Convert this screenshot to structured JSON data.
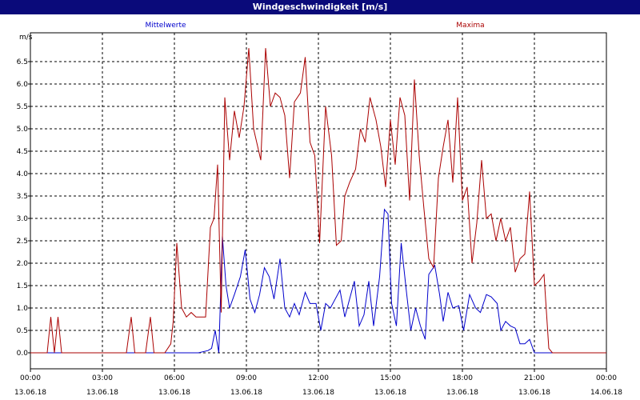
{
  "window": {
    "title": "Windgeschwindigkeit [m/s]"
  },
  "colors": {
    "title_bar": "#0a0a7a",
    "mean_series": "#0000cc",
    "max_series": "#aa0000",
    "grid": "#000000"
  },
  "chart_data": {
    "type": "line",
    "title": "Windgeschwindigkeit [m/s]",
    "ylabel": "m/s",
    "ylim": [
      0,
      7
    ],
    "yticks": [
      "0.0",
      "0.5",
      "1.0",
      "1.5",
      "2.0",
      "2.5",
      "3.0",
      "3.5",
      "4.0",
      "4.5",
      "5.0",
      "5.5",
      "6.0",
      "6.5"
    ],
    "xlim": [
      0,
      24
    ],
    "xticks": [
      {
        "time": "00:00",
        "date": "13.06.18"
      },
      {
        "time": "03:00",
        "date": "13.06.18"
      },
      {
        "time": "06:00",
        "date": "13.06.18"
      },
      {
        "time": "09:00",
        "date": "13.06.18"
      },
      {
        "time": "12:00",
        "date": "13.06.18"
      },
      {
        "time": "15:00",
        "date": "13.06.18"
      },
      {
        "time": "18:00",
        "date": "13.06.18"
      },
      {
        "time": "21:00",
        "date": "13.06.18"
      },
      {
        "time": "00:00",
        "date": "14.06.18"
      }
    ],
    "grid": true,
    "series": [
      {
        "name": "Mittelwerte",
        "color": "#0000cc",
        "points": [
          [
            0,
            0
          ],
          [
            7.0,
            0
          ],
          [
            7.4,
            0.05
          ],
          [
            7.55,
            0.1
          ],
          [
            7.7,
            0.5
          ],
          [
            7.85,
            0
          ],
          [
            8.0,
            2.6
          ],
          [
            8.15,
            1.5
          ],
          [
            8.3,
            1.0
          ],
          [
            8.5,
            1.3
          ],
          [
            8.75,
            1.7
          ],
          [
            8.95,
            2.3
          ],
          [
            9.15,
            1.2
          ],
          [
            9.35,
            0.9
          ],
          [
            9.55,
            1.3
          ],
          [
            9.75,
            1.9
          ],
          [
            9.95,
            1.7
          ],
          [
            10.15,
            1.2
          ],
          [
            10.4,
            2.1
          ],
          [
            10.6,
            1.0
          ],
          [
            10.8,
            0.8
          ],
          [
            11.0,
            1.1
          ],
          [
            11.2,
            0.85
          ],
          [
            11.45,
            1.35
          ],
          [
            11.65,
            1.1
          ],
          [
            11.9,
            1.1
          ],
          [
            12.1,
            0.5
          ],
          [
            12.3,
            1.1
          ],
          [
            12.5,
            1.0
          ],
          [
            12.7,
            1.2
          ],
          [
            12.9,
            1.4
          ],
          [
            13.1,
            0.8
          ],
          [
            13.3,
            1.2
          ],
          [
            13.5,
            1.6
          ],
          [
            13.7,
            0.6
          ],
          [
            13.9,
            0.85
          ],
          [
            14.1,
            1.6
          ],
          [
            14.3,
            0.6
          ],
          [
            14.55,
            1.7
          ],
          [
            14.75,
            3.2
          ],
          [
            14.9,
            3.1
          ],
          [
            15.05,
            1.1
          ],
          [
            15.25,
            0.6
          ],
          [
            15.45,
            2.45
          ],
          [
            15.65,
            1.45
          ],
          [
            15.85,
            0.5
          ],
          [
            16.05,
            1.0
          ],
          [
            16.25,
            0.6
          ],
          [
            16.45,
            0.3
          ],
          [
            16.6,
            1.75
          ],
          [
            16.85,
            1.95
          ],
          [
            17.05,
            1.3
          ],
          [
            17.2,
            0.7
          ],
          [
            17.4,
            1.35
          ],
          [
            17.6,
            1.0
          ],
          [
            17.85,
            1.05
          ],
          [
            18.05,
            0.5
          ],
          [
            18.3,
            1.3
          ],
          [
            18.55,
            1.0
          ],
          [
            18.75,
            0.9
          ],
          [
            19.0,
            1.3
          ],
          [
            19.2,
            1.25
          ],
          [
            19.45,
            1.1
          ],
          [
            19.6,
            0.5
          ],
          [
            19.8,
            0.7
          ],
          [
            20.0,
            0.6
          ],
          [
            20.2,
            0.55
          ],
          [
            20.4,
            0.2
          ],
          [
            20.6,
            0.2
          ],
          [
            20.8,
            0.3
          ],
          [
            21.0,
            0.0
          ],
          [
            24,
            0
          ]
        ]
      },
      {
        "name": "Maxima",
        "color": "#aa0000",
        "points": [
          [
            0,
            0
          ],
          [
            0.7,
            0
          ],
          [
            0.85,
            0.8
          ],
          [
            1.0,
            0
          ],
          [
            1.15,
            0.8
          ],
          [
            1.3,
            0
          ],
          [
            4.0,
            0
          ],
          [
            4.2,
            0.8
          ],
          [
            4.35,
            0
          ],
          [
            4.8,
            0
          ],
          [
            5.0,
            0.8
          ],
          [
            5.15,
            0
          ],
          [
            5.6,
            0
          ],
          [
            5.85,
            0.2
          ],
          [
            5.95,
            0.7
          ],
          [
            6.1,
            2.45
          ],
          [
            6.3,
            1.0
          ],
          [
            6.5,
            0.8
          ],
          [
            6.7,
            0.9
          ],
          [
            6.9,
            0.8
          ],
          [
            7.3,
            0.8
          ],
          [
            7.5,
            2.8
          ],
          [
            7.65,
            3.0
          ],
          [
            7.8,
            4.2
          ],
          [
            7.95,
            0.9
          ],
          [
            8.1,
            5.7
          ],
          [
            8.3,
            4.3
          ],
          [
            8.5,
            5.4
          ],
          [
            8.7,
            4.8
          ],
          [
            8.9,
            5.5
          ],
          [
            9.1,
            6.8
          ],
          [
            9.3,
            5.0
          ],
          [
            9.6,
            4.3
          ],
          [
            9.8,
            6.8
          ],
          [
            10.0,
            5.5
          ],
          [
            10.2,
            5.8
          ],
          [
            10.4,
            5.7
          ],
          [
            10.6,
            5.3
          ],
          [
            10.8,
            3.9
          ],
          [
            11.0,
            5.6
          ],
          [
            11.25,
            5.8
          ],
          [
            11.45,
            6.6
          ],
          [
            11.65,
            4.7
          ],
          [
            11.85,
            4.4
          ],
          [
            12.05,
            2.45
          ],
          [
            12.3,
            5.5
          ],
          [
            12.55,
            4.4
          ],
          [
            12.75,
            2.4
          ],
          [
            12.95,
            2.5
          ],
          [
            13.1,
            3.5
          ],
          [
            13.3,
            3.8
          ],
          [
            13.55,
            4.1
          ],
          [
            13.75,
            5.0
          ],
          [
            13.95,
            4.7
          ],
          [
            14.15,
            5.7
          ],
          [
            14.4,
            5.2
          ],
          [
            14.6,
            4.6
          ],
          [
            14.8,
            3.7
          ],
          [
            15.0,
            5.2
          ],
          [
            15.2,
            4.2
          ],
          [
            15.4,
            5.7
          ],
          [
            15.6,
            5.3
          ],
          [
            15.8,
            3.4
          ],
          [
            16.0,
            6.1
          ],
          [
            16.2,
            4.4
          ],
          [
            16.4,
            3.2
          ],
          [
            16.6,
            2.1
          ],
          [
            16.8,
            1.9
          ],
          [
            17.0,
            3.9
          ],
          [
            17.2,
            4.6
          ],
          [
            17.4,
            5.2
          ],
          [
            17.6,
            3.8
          ],
          [
            17.8,
            5.7
          ],
          [
            18.0,
            3.4
          ],
          [
            18.2,
            3.7
          ],
          [
            18.4,
            2.0
          ],
          [
            18.6,
            2.9
          ],
          [
            18.8,
            4.3
          ],
          [
            19.0,
            3.0
          ],
          [
            19.2,
            3.1
          ],
          [
            19.4,
            2.5
          ],
          [
            19.6,
            3.0
          ],
          [
            19.8,
            2.5
          ],
          [
            20.0,
            2.8
          ],
          [
            20.2,
            1.8
          ],
          [
            20.4,
            2.1
          ],
          [
            20.6,
            2.2
          ],
          [
            20.8,
            3.6
          ],
          [
            21.0,
            1.5
          ],
          [
            21.2,
            1.6
          ],
          [
            21.4,
            1.75
          ],
          [
            21.6,
            0.1
          ],
          [
            21.75,
            0
          ],
          [
            24,
            0
          ]
        ]
      }
    ]
  }
}
